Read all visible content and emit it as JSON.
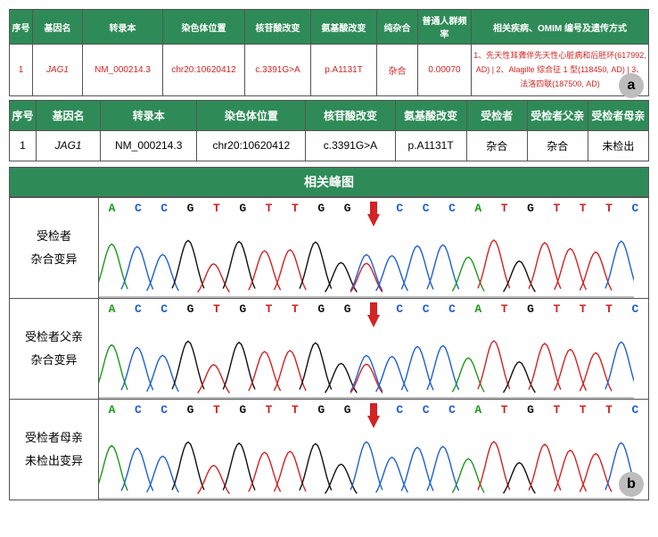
{
  "tableA": {
    "headers": [
      "序号",
      "基因名",
      "转录本",
      "染色体位置",
      "核苷酸改变",
      "氨基酸改变",
      "纯杂合",
      "普通人群频率",
      "相关疾病、OMIM 编号及遗传方式"
    ],
    "row": {
      "index": "1",
      "gene": "JAG1",
      "transcript": "NM_000214.3",
      "location": "chr20:10620412",
      "nt_change": "c.3391G>A",
      "aa_change": "p.A1131T",
      "zygosity": "杂合",
      "freq": "0.00070",
      "diseases": "1、先天性耳聋伴先天性心脏病和后胚环(617992, AD) | 2、Alagille 综合征 1 型(118450, AD) | 3、法洛四联(187500, AD)"
    },
    "col_widths": [
      "26px",
      "56px",
      "90px",
      "92px",
      "74px",
      "74px",
      "46px",
      "60px",
      "auto"
    ]
  },
  "tableB": {
    "headers": [
      "序号",
      "基因名",
      "转录本",
      "染色体位置",
      "核苷酸改变",
      "氨基酸改变",
      "受检者",
      "受检者父亲",
      "受检者母亲"
    ],
    "row": {
      "index": "1",
      "gene": "JAG1",
      "transcript": "NM_000214.3",
      "location": "chr20:10620412",
      "nt_change": "c.3391G>A",
      "aa_change": "p.A1131T",
      "proband": "杂合",
      "father": "杂合",
      "mother": "未检出"
    },
    "col_widths": [
      "30px",
      "72px",
      "108px",
      "122px",
      "100px",
      "80px",
      "68px",
      "68px",
      "68px"
    ]
  },
  "peaks": {
    "title": "相关峰图",
    "sequence": [
      "A",
      "C",
      "C",
      "G",
      "T",
      "G",
      "T",
      "T",
      "G",
      "G",
      "C",
      "C",
      "C",
      "C",
      "A",
      "T",
      "G",
      "T",
      "T",
      "T",
      "C"
    ],
    "base_colors": {
      "A": "#1a9b1a",
      "C": "#1e5fd6",
      "G": "#111111",
      "T": "#d32323"
    },
    "arrow_position_index": 10,
    "rows": [
      {
        "label_line1": "受检者",
        "label_line2": "杂合变异",
        "overlap_at_arrow": true
      },
      {
        "label_line1": "受检者父亲",
        "label_line2": "杂合变异",
        "overlap_at_arrow": true
      },
      {
        "label_line1": "受检者母亲",
        "label_line2": "未检出变异",
        "overlap_at_arrow": false
      }
    ],
    "peak_height": 65
  },
  "badges": {
    "a": "a",
    "b": "b"
  },
  "colors": {
    "header_bg": "#2e8b57",
    "header_fg": "#ffffff",
    "border": "#555555",
    "tableA_text": "#d32323",
    "arrow": "#d32323",
    "badge_bg": "#bdbdbd"
  }
}
